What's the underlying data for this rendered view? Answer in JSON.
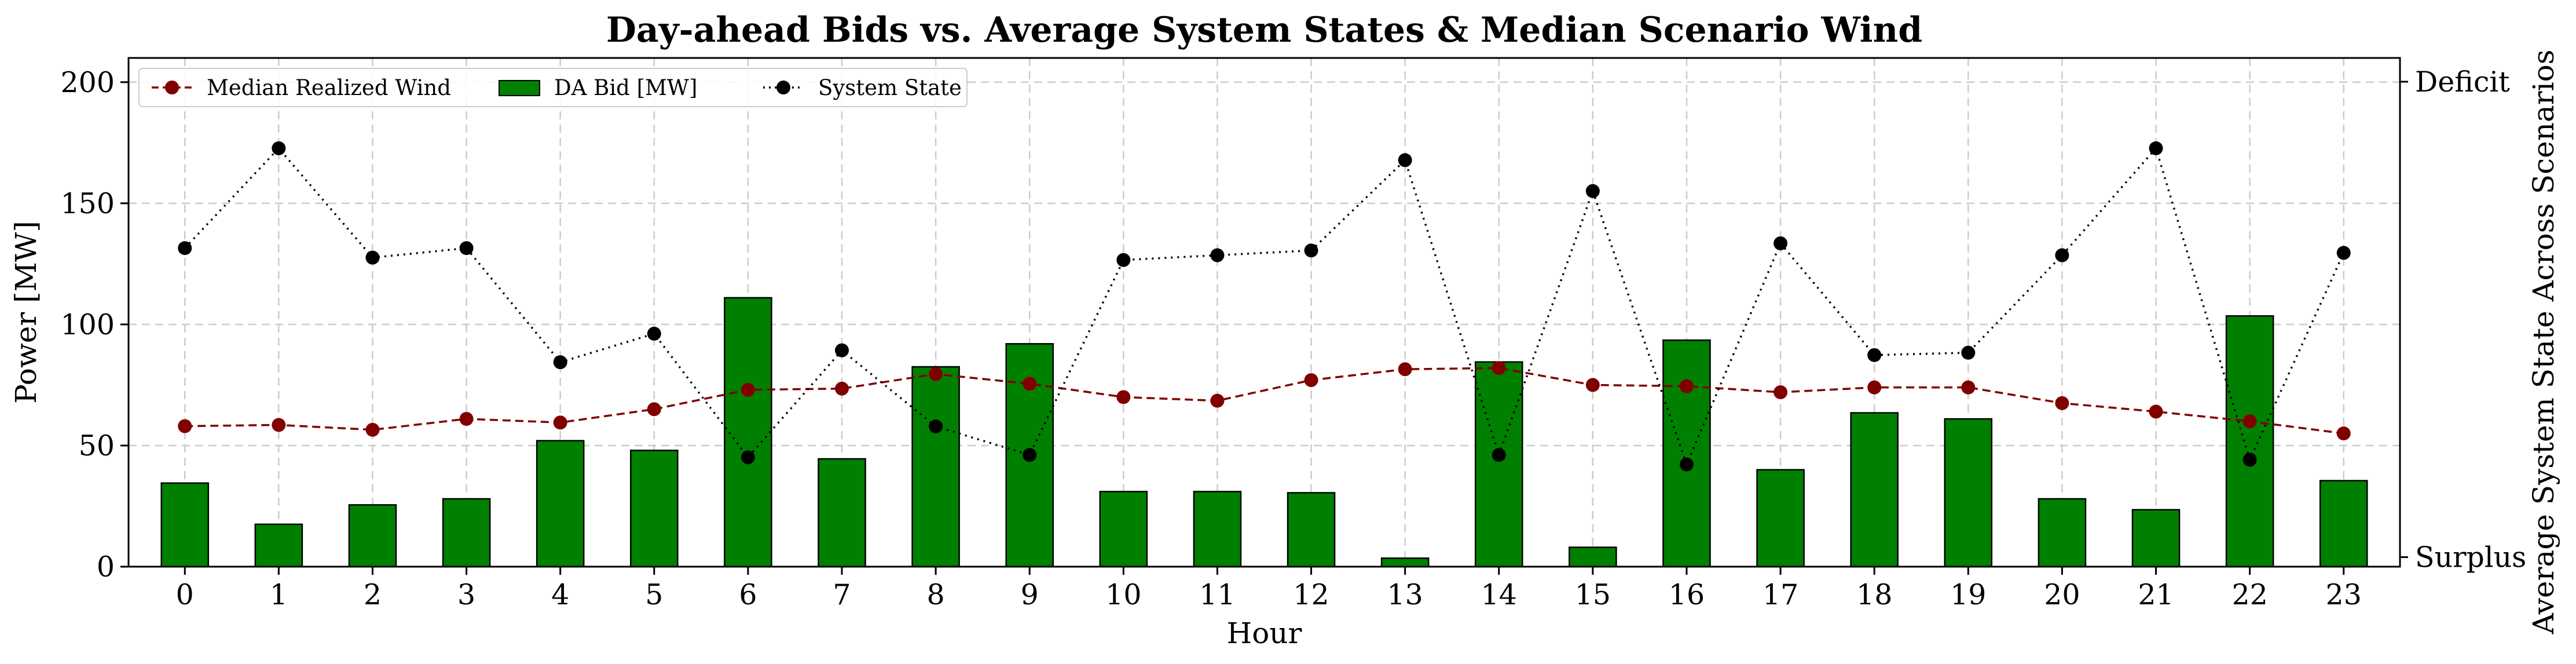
{
  "chart_data": {
    "type": "bar+line",
    "title": "Day-ahead Bids vs. Average System States & Median Scenario Wind",
    "xlabel": "Hour",
    "ylabel": "Power [MW]",
    "y2label": "Average System State Across Scenarios",
    "categories": [
      "0",
      "1",
      "2",
      "3",
      "4",
      "5",
      "6",
      "7",
      "8",
      "9",
      "10",
      "11",
      "12",
      "13",
      "14",
      "15",
      "16",
      "17",
      "18",
      "19",
      "20",
      "21",
      "22",
      "23"
    ],
    "ylim": [
      0,
      210
    ],
    "yticks": [
      0,
      50,
      100,
      150,
      200
    ],
    "y2ticks": [
      {
        "label": "Surplus",
        "value": -1
      },
      {
        "label": "Deficit",
        "value": 1
      }
    ],
    "y2lim": [
      -1.04,
      1.1
    ],
    "grid": true,
    "legend_position": "top-left",
    "colors": {
      "bar": "#008000",
      "wind": "#800000",
      "state": "#000000",
      "grid": "#cccccc"
    },
    "series": [
      {
        "name": "Median Realized Wind",
        "kind": "line",
        "axis": "left",
        "values": [
          58,
          58.5,
          56.5,
          61,
          59.5,
          65,
          73,
          73.5,
          79.5,
          75.5,
          70,
          68.5,
          77,
          81.5,
          82,
          75,
          74.5,
          72,
          74,
          74,
          67.5,
          64,
          60,
          55
        ]
      },
      {
        "name": "DA Bid [MW]",
        "kind": "bar",
        "axis": "left",
        "values": [
          34.5,
          17.5,
          25.5,
          28,
          52,
          48,
          111,
          44.5,
          82.5,
          92,
          31,
          31,
          30.5,
          3.5,
          84.5,
          8,
          93.5,
          40,
          63.5,
          61,
          28,
          23.5,
          103.5,
          35.5
        ]
      },
      {
        "name": "System State",
        "kind": "line",
        "axis": "right",
        "values": [
          0.3,
          0.72,
          0.26,
          0.3,
          -0.18,
          -0.06,
          -0.58,
          -0.13,
          -0.45,
          -0.57,
          0.25,
          0.27,
          0.29,
          0.67,
          -0.57,
          0.54,
          -0.61,
          0.32,
          -0.15,
          -0.14,
          0.27,
          0.72,
          -0.59,
          0.28
        ]
      }
    ]
  }
}
